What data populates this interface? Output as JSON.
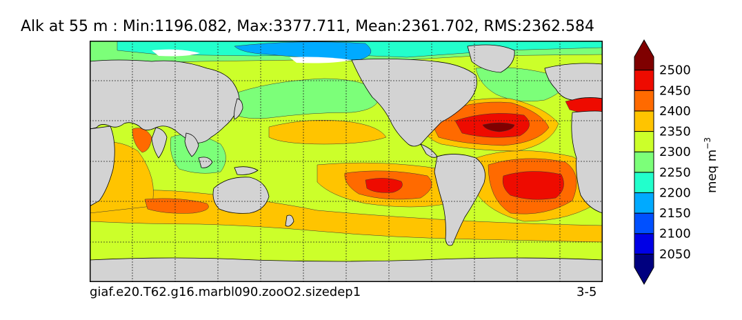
{
  "title": "Alk at 55 m : Min:1196.082, Max:3377.711, Mean:2361.702, RMS:2362.584",
  "footer": {
    "case_name": "giaf.e20.T62.g16.marbl090.zooO2.sizedep1",
    "years": "3-5"
  },
  "colorbar": {
    "unit_text": "meq m",
    "unit_exponent": "−3",
    "labels": [
      "2050",
      "2100",
      "2150",
      "2200",
      "2250",
      "2300",
      "2350",
      "2400",
      "2450",
      "2500"
    ],
    "colors": [
      "#00007f",
      "#0000e6",
      "#0050ff",
      "#00aaff",
      "#22ffcc",
      "#7cff79",
      "#ccff2a",
      "#ffc400",
      "#ff6a00",
      "#ee0b00",
      "#7f0000"
    ],
    "extend": "both"
  },
  "map": {
    "land_color": "#d3d3d3",
    "ocean_background_color": "#ccff2a",
    "gridlines": "dashed"
  }
}
